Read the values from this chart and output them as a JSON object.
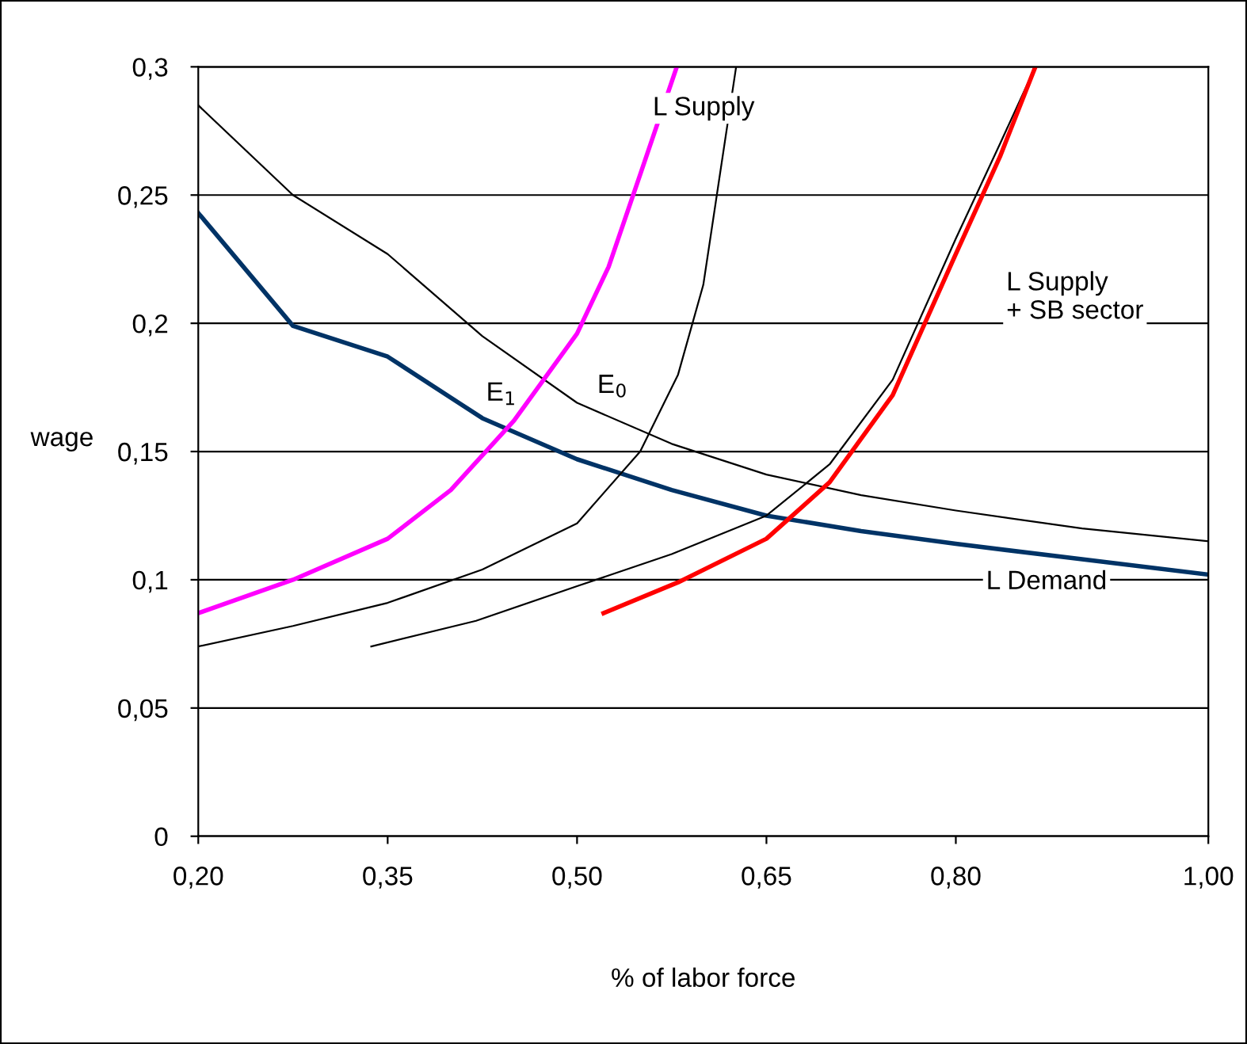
{
  "chart_data": {
    "type": "line",
    "xlabel": "% of labor force",
    "ylabel": "wage",
    "xlim": [
      0.2,
      1.0
    ],
    "ylim": [
      0,
      0.3
    ],
    "xticks": [
      {
        "value": 0.2,
        "label": "0,20"
      },
      {
        "value": 0.35,
        "label": "0,35"
      },
      {
        "value": 0.5,
        "label": "0,50"
      },
      {
        "value": 0.65,
        "label": "0,65"
      },
      {
        "value": 0.8,
        "label": "0,80"
      },
      {
        "value": 1.0,
        "label": "1,00"
      }
    ],
    "yticks": [
      0,
      {
        "value": 0.05,
        "label": "0,05"
      },
      {
        "value": 0.1,
        "label": "0,1"
      },
      {
        "value": 0.15,
        "label": "0,15"
      },
      {
        "value": 0.2,
        "label": "0,2"
      },
      {
        "value": 0.25,
        "label": "0,25"
      },
      {
        "value": 0.3,
        "label": "0,3"
      }
    ],
    "grid": "y",
    "legend": false,
    "marker": "none",
    "line_style": "solid",
    "series": [
      {
        "color": "#000000",
        "x": [
          0.2,
          0.275,
          0.35,
          0.425,
          0.5,
          0.575,
          0.65,
          0.725,
          0.8,
          0.9,
          1.0
        ],
        "values": [
          0.285,
          0.25,
          0.227,
          0.195,
          0.169,
          0.153,
          0.141,
          0.133,
          0.127,
          0.12,
          0.115
        ]
      },
      {
        "color": "#003366",
        "x": [
          0.2,
          0.275,
          0.35,
          0.425,
          0.5,
          0.575,
          0.65,
          0.725,
          0.8,
          0.9,
          1.0
        ],
        "values": [
          0.243,
          0.199,
          0.187,
          0.163,
          0.147,
          0.135,
          0.125,
          0.119,
          0.114,
          0.108,
          0.102
        ]
      },
      {
        "color": "#ff00ff",
        "x": [
          0.2,
          0.275,
          0.35,
          0.4,
          0.45,
          0.5,
          0.525,
          0.55,
          0.579
        ],
        "values": [
          0.087,
          0.1,
          0.116,
          0.135,
          0.162,
          0.196,
          0.222,
          0.258,
          0.3
        ]
      },
      {
        "color": "#000000",
        "x": [
          0.2,
          0.275,
          0.35,
          0.425,
          0.5,
          0.55,
          0.58,
          0.6,
          0.626
        ],
        "values": [
          0.074,
          0.082,
          0.091,
          0.104,
          0.122,
          0.15,
          0.18,
          0.215,
          0.3
        ]
      },
      {
        "color": "#000000",
        "x": [
          0.337,
          0.42,
          0.5,
          0.575,
          0.65,
          0.7,
          0.75,
          0.8,
          0.835,
          0.863
        ],
        "values": [
          0.074,
          0.084,
          0.0975,
          0.11,
          0.125,
          0.145,
          0.178,
          0.233,
          0.27,
          0.3
        ]
      },
      {
        "color": "#ff0000",
        "x": [
          0.521,
          0.58,
          0.65,
          0.7,
          0.75,
          0.8,
          0.835,
          0.863
        ],
        "values": [
          0.087,
          0.099,
          0.116,
          0.138,
          0.172,
          0.227,
          0.265,
          0.3
        ]
      }
    ],
    "annotations": [
      "L Supply",
      "L Supply\n+ SB sector",
      "L Demand",
      "E$_{1}$",
      "E$_{0}$"
    ]
  }
}
